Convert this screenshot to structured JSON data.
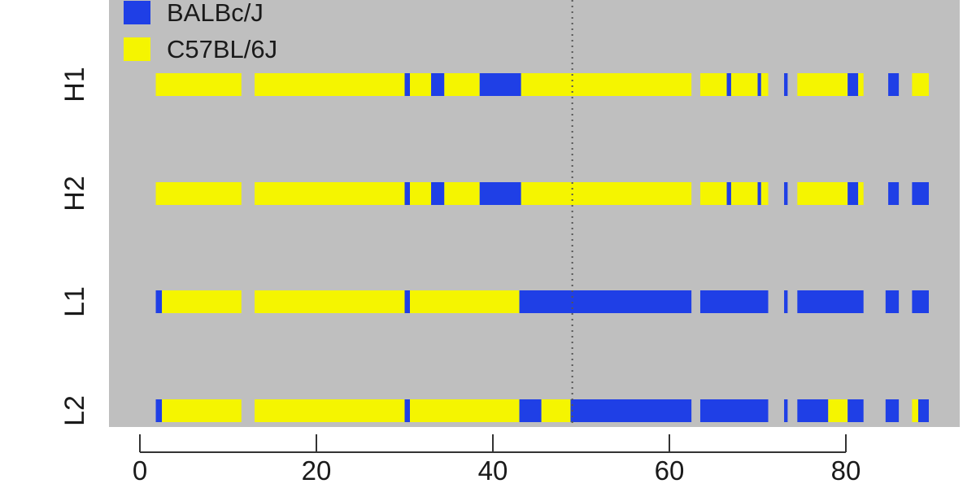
{
  "chart_data": {
    "type": "heatmap",
    "title": "",
    "xlabel": "",
    "ylabel": "",
    "xlim": [
      -1,
      93
    ],
    "x_ticks": [
      0,
      20,
      40,
      60,
      80
    ],
    "grid": false,
    "legend_placement": "top-left",
    "background_color": "#bfbfbf",
    "reference_line_x": 49,
    "legend": [
      {
        "name": "BALBc/J",
        "color": "#1f3fe6"
      },
      {
        "name": "C57BL/6J",
        "color": "#f5f500"
      }
    ],
    "tracks": [
      {
        "label": "H1",
        "segments": [
          {
            "start": 1.8,
            "end": 11.5,
            "strain": "C57BL/6J"
          },
          {
            "start": 13.0,
            "end": 30.0,
            "strain": "C57BL/6J"
          },
          {
            "start": 30.0,
            "end": 30.6,
            "strain": "BALBc/J"
          },
          {
            "start": 30.6,
            "end": 33.0,
            "strain": "C57BL/6J"
          },
          {
            "start": 33.0,
            "end": 34.5,
            "strain": "BALBc/J"
          },
          {
            "start": 34.5,
            "end": 38.5,
            "strain": "C57BL/6J"
          },
          {
            "start": 38.5,
            "end": 43.2,
            "strain": "BALBc/J"
          },
          {
            "start": 43.2,
            "end": 62.5,
            "strain": "C57BL/6J"
          },
          {
            "start": 63.5,
            "end": 66.5,
            "strain": "C57BL/6J"
          },
          {
            "start": 66.5,
            "end": 67.0,
            "strain": "BALBc/J"
          },
          {
            "start": 67.0,
            "end": 70.0,
            "strain": "C57BL/6J"
          },
          {
            "start": 70.0,
            "end": 70.4,
            "strain": "BALBc/J"
          },
          {
            "start": 70.4,
            "end": 71.2,
            "strain": "C57BL/6J"
          },
          {
            "start": 73.0,
            "end": 73.4,
            "strain": "BALBc/J"
          },
          {
            "start": 74.5,
            "end": 80.2,
            "strain": "C57BL/6J"
          },
          {
            "start": 80.2,
            "end": 81.4,
            "strain": "BALBc/J"
          },
          {
            "start": 81.4,
            "end": 82.0,
            "strain": "C57BL/6J"
          },
          {
            "start": 84.8,
            "end": 86.0,
            "strain": "BALBc/J"
          },
          {
            "start": 87.5,
            "end": 89.4,
            "strain": "C57BL/6J"
          }
        ]
      },
      {
        "label": "H2",
        "segments": [
          {
            "start": 1.8,
            "end": 11.5,
            "strain": "C57BL/6J"
          },
          {
            "start": 13.0,
            "end": 30.0,
            "strain": "C57BL/6J"
          },
          {
            "start": 30.0,
            "end": 30.6,
            "strain": "BALBc/J"
          },
          {
            "start": 30.6,
            "end": 33.0,
            "strain": "C57BL/6J"
          },
          {
            "start": 33.0,
            "end": 34.5,
            "strain": "BALBc/J"
          },
          {
            "start": 34.5,
            "end": 38.5,
            "strain": "C57BL/6J"
          },
          {
            "start": 38.5,
            "end": 43.2,
            "strain": "BALBc/J"
          },
          {
            "start": 43.2,
            "end": 62.5,
            "strain": "C57BL/6J"
          },
          {
            "start": 63.5,
            "end": 66.5,
            "strain": "C57BL/6J"
          },
          {
            "start": 66.5,
            "end": 67.0,
            "strain": "BALBc/J"
          },
          {
            "start": 67.0,
            "end": 70.0,
            "strain": "C57BL/6J"
          },
          {
            "start": 70.0,
            "end": 70.4,
            "strain": "BALBc/J"
          },
          {
            "start": 70.4,
            "end": 71.2,
            "strain": "C57BL/6J"
          },
          {
            "start": 73.0,
            "end": 73.4,
            "strain": "BALBc/J"
          },
          {
            "start": 74.5,
            "end": 80.2,
            "strain": "C57BL/6J"
          },
          {
            "start": 80.2,
            "end": 81.4,
            "strain": "BALBc/J"
          },
          {
            "start": 81.4,
            "end": 82.0,
            "strain": "C57BL/6J"
          },
          {
            "start": 84.8,
            "end": 86.0,
            "strain": "BALBc/J"
          },
          {
            "start": 87.5,
            "end": 89.4,
            "strain": "BALBc/J"
          }
        ]
      },
      {
        "label": "L1",
        "segments": [
          {
            "start": 1.8,
            "end": 2.5,
            "strain": "BALBc/J"
          },
          {
            "start": 2.5,
            "end": 11.5,
            "strain": "C57BL/6J"
          },
          {
            "start": 13.0,
            "end": 30.0,
            "strain": "C57BL/6J"
          },
          {
            "start": 30.0,
            "end": 30.6,
            "strain": "BALBc/J"
          },
          {
            "start": 30.6,
            "end": 43.0,
            "strain": "C57BL/6J"
          },
          {
            "start": 43.0,
            "end": 62.5,
            "strain": "BALBc/J"
          },
          {
            "start": 63.5,
            "end": 71.2,
            "strain": "BALBc/J"
          },
          {
            "start": 73.0,
            "end": 73.4,
            "strain": "BALBc/J"
          },
          {
            "start": 74.5,
            "end": 82.0,
            "strain": "BALBc/J"
          },
          {
            "start": 84.5,
            "end": 86.0,
            "strain": "BALBc/J"
          },
          {
            "start": 87.5,
            "end": 89.4,
            "strain": "BALBc/J"
          }
        ]
      },
      {
        "label": "L2",
        "segments": [
          {
            "start": 1.8,
            "end": 2.5,
            "strain": "BALBc/J"
          },
          {
            "start": 2.5,
            "end": 11.5,
            "strain": "C57BL/6J"
          },
          {
            "start": 13.0,
            "end": 30.0,
            "strain": "C57BL/6J"
          },
          {
            "start": 30.0,
            "end": 30.6,
            "strain": "BALBc/J"
          },
          {
            "start": 30.6,
            "end": 43.0,
            "strain": "C57BL/6J"
          },
          {
            "start": 43.0,
            "end": 45.5,
            "strain": "BALBc/J"
          },
          {
            "start": 45.5,
            "end": 48.8,
            "strain": "C57BL/6J"
          },
          {
            "start": 48.8,
            "end": 62.5,
            "strain": "BALBc/J"
          },
          {
            "start": 63.5,
            "end": 71.2,
            "strain": "BALBc/J"
          },
          {
            "start": 73.0,
            "end": 73.4,
            "strain": "BALBc/J"
          },
          {
            "start": 74.5,
            "end": 78.0,
            "strain": "BALBc/J"
          },
          {
            "start": 78.0,
            "end": 80.2,
            "strain": "C57BL/6J"
          },
          {
            "start": 80.2,
            "end": 82.0,
            "strain": "BALBc/J"
          },
          {
            "start": 84.5,
            "end": 86.0,
            "strain": "BALBc/J"
          },
          {
            "start": 87.5,
            "end": 88.2,
            "strain": "C57BL/6J"
          },
          {
            "start": 88.2,
            "end": 89.4,
            "strain": "BALBc/J"
          }
        ]
      }
    ]
  }
}
